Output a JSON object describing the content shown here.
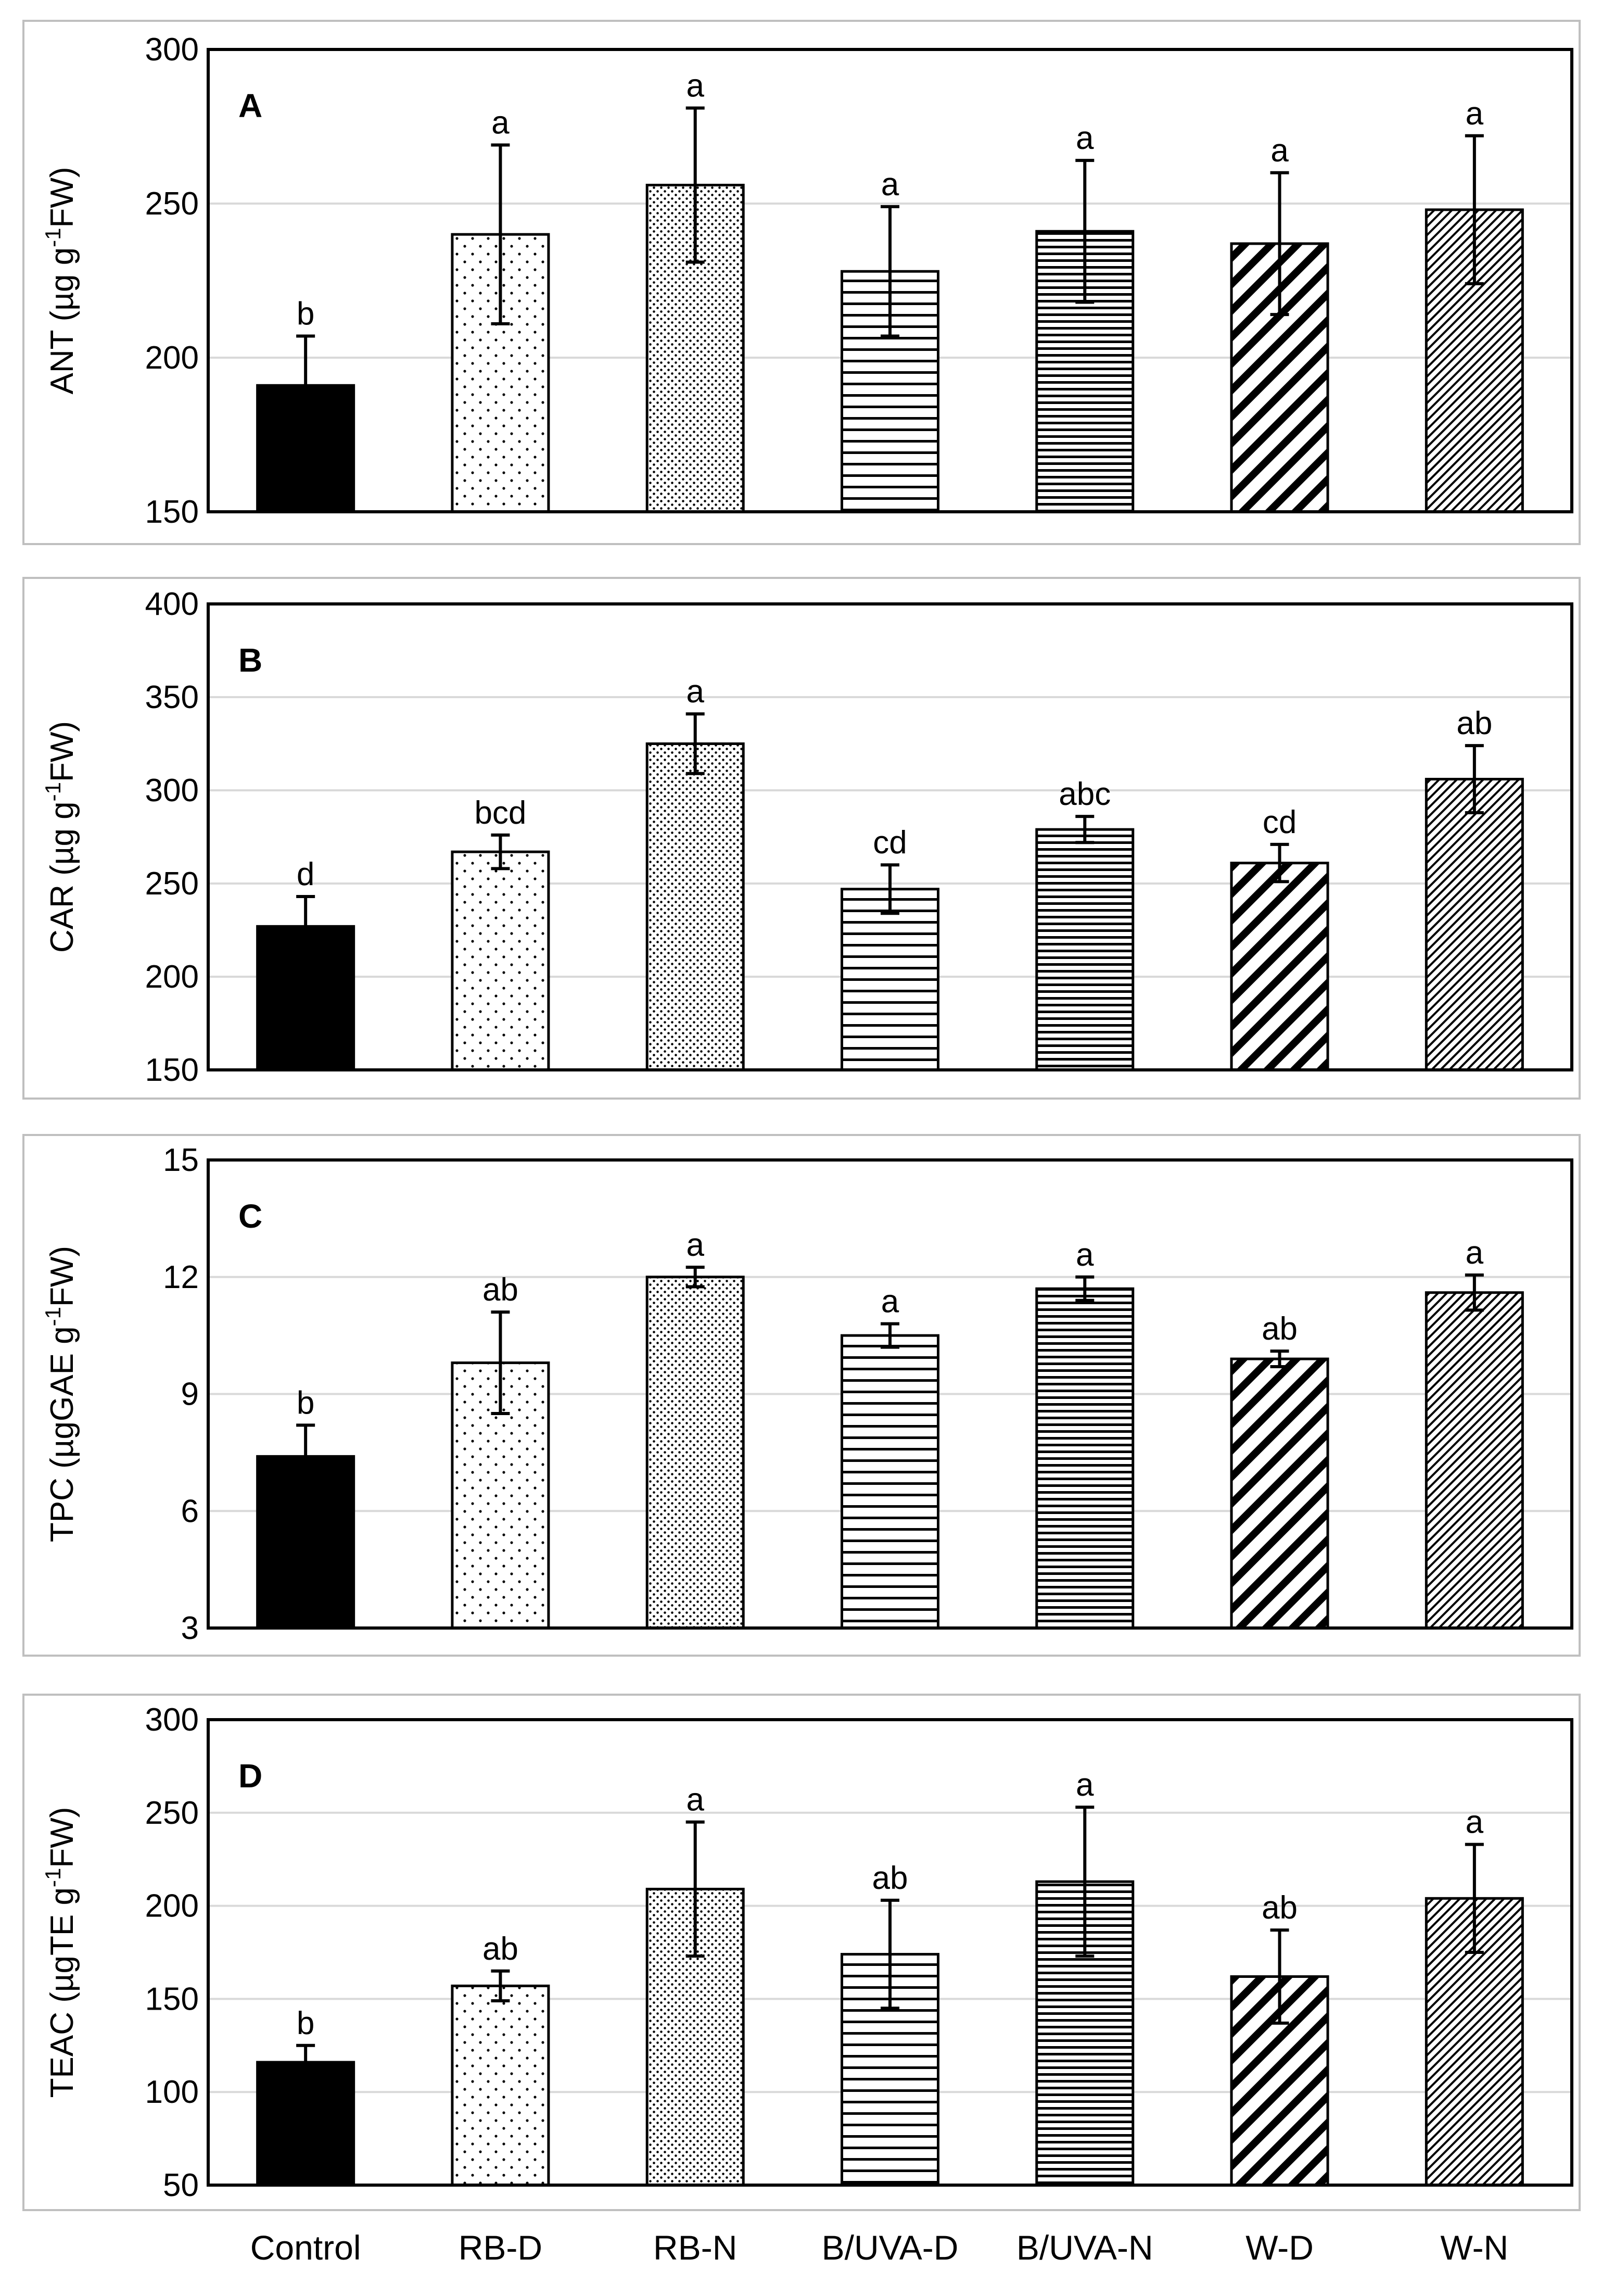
{
  "categories": [
    "Control",
    "RB-D",
    "RB-N",
    "B/UVA-D",
    "B/UVA-N",
    "W-D",
    "W-N"
  ],
  "chart_data": [
    {
      "type": "bar",
      "panel": "A",
      "ylabel": {
        "main": "ANT (µg g",
        "sup": "-1",
        "tail": "FW)"
      },
      "ylim": [
        150,
        300
      ],
      "yticks": [
        "150",
        "200",
        "250",
        "300"
      ],
      "values": [
        191,
        240,
        256,
        228,
        241,
        237,
        248
      ],
      "errors": [
        16,
        29,
        25,
        21,
        23,
        23,
        24
      ],
      "letters": [
        "b",
        "a",
        "a",
        "a",
        "a",
        "a",
        "a"
      ]
    },
    {
      "type": "bar",
      "panel": "B",
      "ylabel": {
        "main": "CAR (µg g",
        "sup": "-1",
        "tail": "FW)"
      },
      "ylim": [
        150,
        400
      ],
      "yticks": [
        "150",
        "200",
        "250",
        "300",
        "350",
        "400"
      ],
      "values": [
        227,
        267,
        325,
        247,
        279,
        261,
        306
      ],
      "errors": [
        16,
        9,
        16,
        13,
        7,
        10,
        18
      ],
      "letters": [
        "d",
        "bcd",
        "a",
        "cd",
        "abc",
        "cd",
        "ab"
      ]
    },
    {
      "type": "bar",
      "panel": "C",
      "ylabel": {
        "main": "TPC (µgGAE g",
        "sup": "-1",
        "tail": "FW)"
      },
      "ylim": [
        3,
        15
      ],
      "yticks": [
        "3",
        "6",
        "9",
        "12",
        "15"
      ],
      "values": [
        7.4,
        9.8,
        12.0,
        10.5,
        11.7,
        9.9,
        11.6
      ],
      "errors": [
        0.8,
        1.3,
        0.25,
        0.3,
        0.3,
        0.2,
        0.45
      ],
      "letters": [
        "b",
        "ab",
        "a",
        "a",
        "a",
        "ab",
        "a"
      ]
    },
    {
      "type": "bar",
      "panel": "D",
      "ylabel": {
        "main": "TEAC (µgTE g",
        "sup": "-1",
        "tail": "FW)"
      },
      "ylim": [
        50,
        300
      ],
      "yticks": [
        "50",
        "100",
        "150",
        "200",
        "250",
        "300"
      ],
      "values": [
        116,
        157,
        209,
        174,
        213,
        162,
        204
      ],
      "errors": [
        9,
        8,
        36,
        29,
        40,
        25,
        29
      ],
      "letters": [
        "b",
        "ab",
        "a",
        "ab",
        "a",
        "ab",
        "a"
      ]
    }
  ],
  "colors": {
    "axis": "#000000",
    "grid": "#d9d9d9",
    "frame": "#bfbfbf",
    "bar_fill_control": "#000000"
  },
  "patterns": [
    "solid-black",
    "sparse-dots",
    "dense-dots",
    "horizontal-lines-wide",
    "horizontal-lines-dense",
    "wide-diagonal-stripes",
    "fine-diagonal-hatch"
  ]
}
